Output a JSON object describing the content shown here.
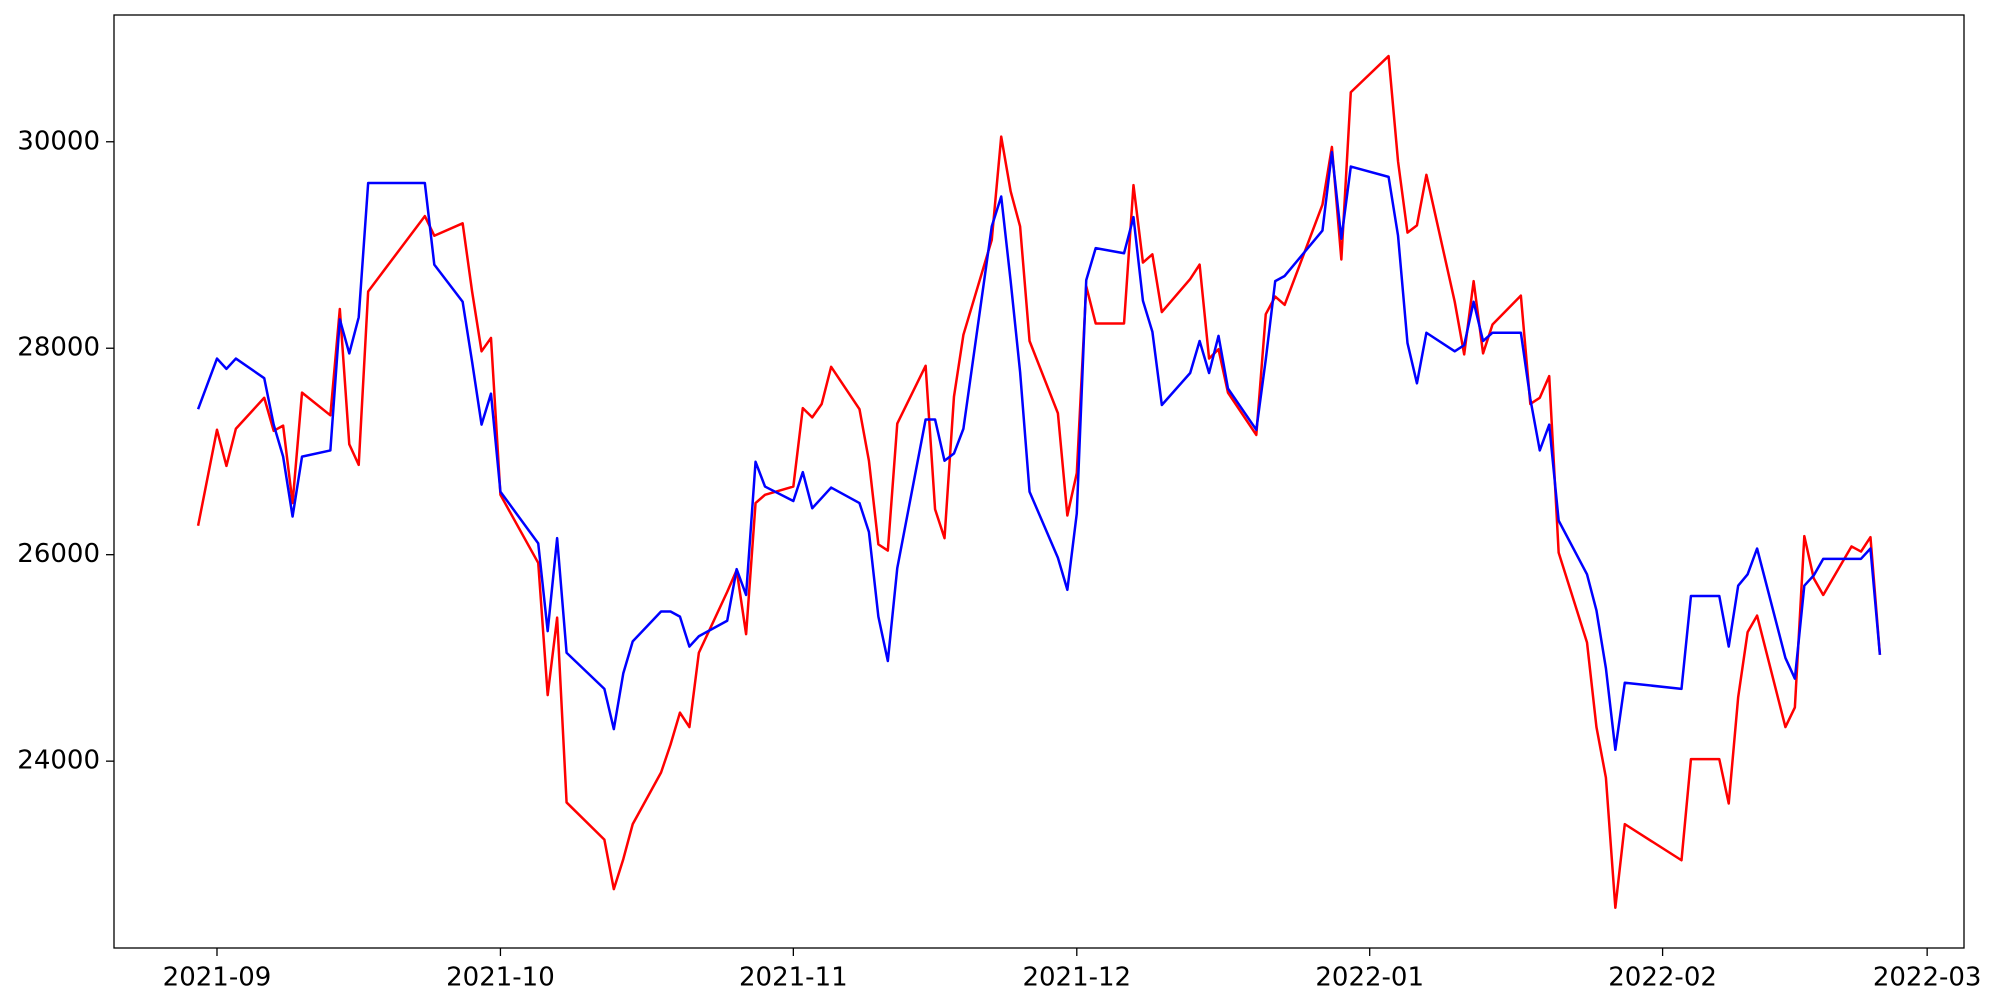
{
  "chart_data": {
    "type": "line",
    "x": [
      18869,
      18871,
      18872,
      18873,
      18876,
      18877,
      18878,
      18879,
      18880,
      18883,
      18884,
      18885,
      18886,
      18887,
      18893,
      18894,
      18897,
      18898,
      18899,
      18900,
      18901,
      18905,
      18906,
      18907,
      18908,
      18912,
      18913,
      18914,
      18915,
      18918,
      18919,
      18920,
      18921,
      18922,
      18925,
      18926,
      18927,
      18928,
      18929,
      18932,
      18933,
      18934,
      18935,
      18936,
      18939,
      18940,
      18941,
      18942,
      18943,
      18946,
      18947,
      18948,
      18949,
      18950,
      18953,
      18954,
      18955,
      18956,
      18957,
      18960,
      18961,
      18962,
      18963,
      18964,
      18967,
      18968,
      18969,
      18970,
      18971,
      18974,
      18975,
      18976,
      18977,
      18978,
      18981,
      18982,
      18983,
      18984,
      18988,
      18989,
      18990,
      18991,
      18995,
      18996,
      18997,
      18998,
      18999,
      19002,
      19003,
      19004,
      19005,
      19006,
      19009,
      19010,
      19011,
      19012,
      19013,
      19016,
      19017,
      19018,
      19019,
      19020,
      19026,
      19027,
      19030,
      19031,
      19032,
      19033,
      19034,
      19037,
      19038,
      19039,
      19040,
      19041,
      19044,
      19045,
      19046,
      19047
    ],
    "series": [
      {
        "color": "#ff0000",
        "values": [
          26280,
          27210,
          26860,
          27220,
          27520,
          27200,
          27250,
          26500,
          27570,
          27350,
          28380,
          27070,
          26870,
          28550,
          29280,
          29090,
          29210,
          28550,
          27970,
          28100,
          26580,
          25920,
          24640,
          25390,
          23600,
          23240,
          22760,
          23050,
          23390,
          23890,
          24160,
          24470,
          24330,
          25050,
          25640,
          25850,
          25230,
          26500,
          26580,
          26660,
          27420,
          27330,
          27460,
          27820,
          27410,
          26910,
          26100,
          26040,
          27270,
          27830,
          26440,
          26160,
          27530,
          28130,
          29050,
          30050,
          29520,
          29180,
          28070,
          27370,
          26380,
          26790,
          28600,
          28240,
          28240,
          29580,
          28830,
          28910,
          28350,
          28670,
          28810,
          27900,
          27990,
          27570,
          27160,
          28330,
          28500,
          28420,
          29390,
          29950,
          28860,
          30480,
          30830,
          29810,
          29120,
          29190,
          29680,
          28450,
          27940,
          28650,
          27950,
          28230,
          28510,
          27460,
          27520,
          27730,
          26020,
          25150,
          24330,
          23840,
          22580,
          23390,
          23040,
          24020,
          24020,
          23590,
          24620,
          25250,
          25410,
          24330,
          24520,
          26180,
          25770,
          25610,
          26080,
          26030,
          26170,
          25030
        ]
      },
      {
        "color": "#0000ff",
        "values": [
          27410,
          27900,
          27800,
          27900,
          27710,
          27260,
          26950,
          26370,
          26950,
          27010,
          28280,
          27950,
          28300,
          29600,
          29600,
          28810,
          28450,
          27870,
          27260,
          27560,
          26610,
          26110,
          25260,
          26160,
          25050,
          24700,
          24310,
          24850,
          25160,
          25450,
          25450,
          25400,
          25110,
          25210,
          25360,
          25860,
          25610,
          26900,
          26660,
          26520,
          26800,
          26450,
          26550,
          26650,
          26500,
          26220,
          25400,
          24970,
          25870,
          27310,
          27310,
          26910,
          26980,
          27220,
          29180,
          29470,
          28650,
          27770,
          26610,
          25970,
          25660,
          26400,
          28660,
          28970,
          28920,
          29270,
          28460,
          28160,
          27450,
          27760,
          28070,
          27760,
          28120,
          27610,
          27210,
          27890,
          28650,
          28700,
          29140,
          29900,
          29060,
          29760,
          29660,
          29090,
          28050,
          27660,
          28150,
          27970,
          28030,
          28450,
          28070,
          28150,
          28150,
          27510,
          27010,
          27260,
          26330,
          25810,
          25460,
          24900,
          24110,
          24760,
          24700,
          25600,
          25600,
          25110,
          25700,
          25810,
          26060,
          25000,
          24800,
          25700,
          25800,
          25960,
          25960,
          25960,
          26060,
          25030
        ]
      }
    ],
    "xlim": [
      18860.1,
      19055.9
    ],
    "xticks": [
      {
        "value": 18871,
        "label": "2021-09"
      },
      {
        "value": 18901,
        "label": "2021-10"
      },
      {
        "value": 18932,
        "label": "2021-11"
      },
      {
        "value": 18962,
        "label": "2021-12"
      },
      {
        "value": 18993,
        "label": "2022-01"
      },
      {
        "value": 19024,
        "label": "2022-02"
      },
      {
        "value": 19052,
        "label": "2022-03"
      }
    ],
    "ylim": [
      22190,
      31228
    ],
    "yticks": [
      24000,
      26000,
      28000,
      30000
    ],
    "grid": false
  }
}
